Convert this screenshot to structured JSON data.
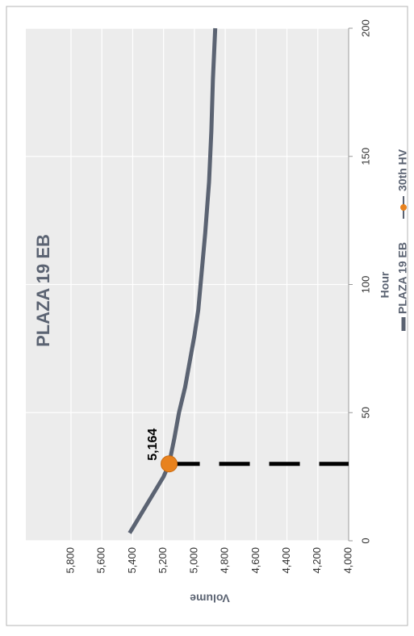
{
  "chart_data": {
    "type": "line",
    "title": "PLAZA 19 EB",
    "xlabel": "Hour",
    "ylabel": "Volume",
    "xlim": [
      0,
      200
    ],
    "xticks": [
      0,
      50,
      100,
      150,
      200
    ],
    "ylim": [
      4000,
      5800
    ],
    "yticks": [
      {
        "value": 4000,
        "label": "4,000"
      },
      {
        "value": 4200,
        "label": "4,200"
      },
      {
        "value": 4400,
        "label": "4,400"
      },
      {
        "value": 4600,
        "label": "4,600"
      },
      {
        "value": 4800,
        "label": "4,800"
      },
      {
        "value": 5000,
        "label": "5,000"
      },
      {
        "value": 5200,
        "label": "5,200"
      },
      {
        "value": 5400,
        "label": "5,400"
      },
      {
        "value": 5600,
        "label": "5,600"
      },
      {
        "value": 5800,
        "label": "5,800"
      }
    ],
    "grid": true,
    "legend": "bottom",
    "series": [
      {
        "name": "PLAZA 19 EB",
        "color": "#5b6372",
        "x": [
          3,
          5,
          10,
          15,
          20,
          25,
          30,
          40,
          50,
          60,
          70,
          80,
          90,
          100,
          120,
          140,
          160,
          180,
          200
        ],
        "values": [
          5420,
          5400,
          5350,
          5300,
          5250,
          5200,
          5164,
          5130,
          5100,
          5060,
          5030,
          5000,
          4975,
          4960,
          4930,
          4905,
          4890,
          4880,
          4865
        ]
      },
      {
        "name": "30th HV",
        "color": "#e8821e",
        "x": [
          30
        ],
        "values": [
          5164
        ],
        "value_labels": [
          "5,164"
        ]
      }
    ]
  }
}
